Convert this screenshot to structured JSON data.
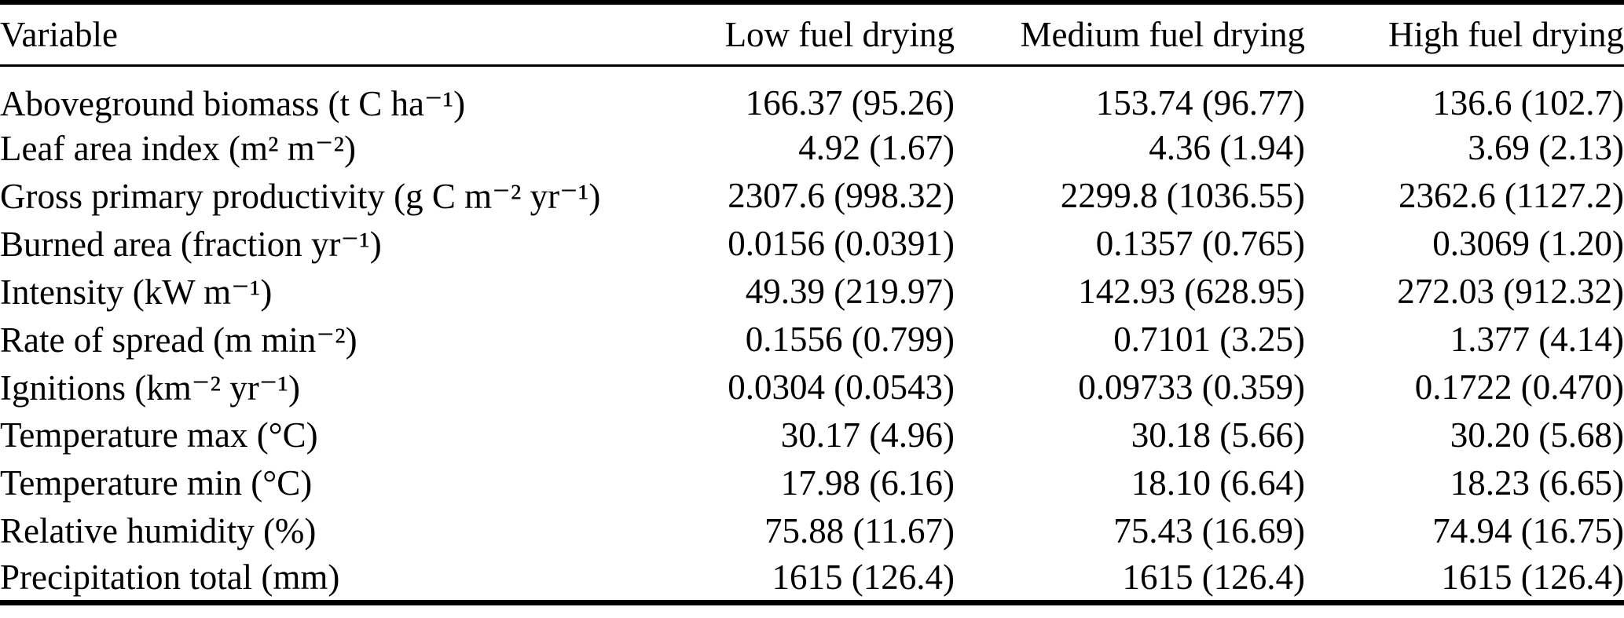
{
  "colors": {
    "background": "#ffffff",
    "text": "#000000",
    "rule": "#000000"
  },
  "table": {
    "headers": [
      "Variable",
      "Low fuel drying",
      "Medium fuel drying",
      "High fuel drying"
    ],
    "rows": [
      [
        "Aboveground biomass (t C ha⁻¹)",
        "166.37 (95.26)",
        "153.74 (96.77)",
        "136.6 (102.7)"
      ],
      [
        "Leaf area index (m² m⁻²)",
        "4.92 (1.67)",
        "4.36 (1.94)",
        "3.69 (2.13)"
      ],
      [
        "Gross primary productivity (g C m⁻² yr⁻¹)",
        "2307.6 (998.32)",
        "2299.8 (1036.55)",
        "2362.6 (1127.2)"
      ],
      [
        "Burned area (fraction yr⁻¹)",
        "0.0156 (0.0391)",
        "0.1357 (0.765)",
        "0.3069 (1.20)"
      ],
      [
        "Intensity (kW m⁻¹)",
        "49.39 (219.97)",
        "142.93 (628.95)",
        "272.03 (912.32)"
      ],
      [
        "Rate of spread (m min⁻²)",
        "0.1556 (0.799)",
        "0.7101 (3.25)",
        "1.377 (4.14)"
      ],
      [
        "Ignitions (km⁻² yr⁻¹)",
        "0.0304 (0.0543)",
        "0.09733 (0.359)",
        "0.1722 (0.470)"
      ],
      [
        "Temperature max (°C)",
        "30.17 (4.96)",
        "30.18 (5.66)",
        "30.20 (5.68)"
      ],
      [
        "Temperature min (°C)",
        "17.98 (6.16)",
        "18.10 (6.64)",
        "18.23 (6.65)"
      ],
      [
        "Relative humidity (%)",
        "75.88 (11.67)",
        "75.43 (16.69)",
        "74.94 (16.75)"
      ],
      [
        "Precipitation total (mm)",
        "1615 (126.4)",
        "1615 (126.4)",
        "1615 (126.4)"
      ]
    ]
  }
}
